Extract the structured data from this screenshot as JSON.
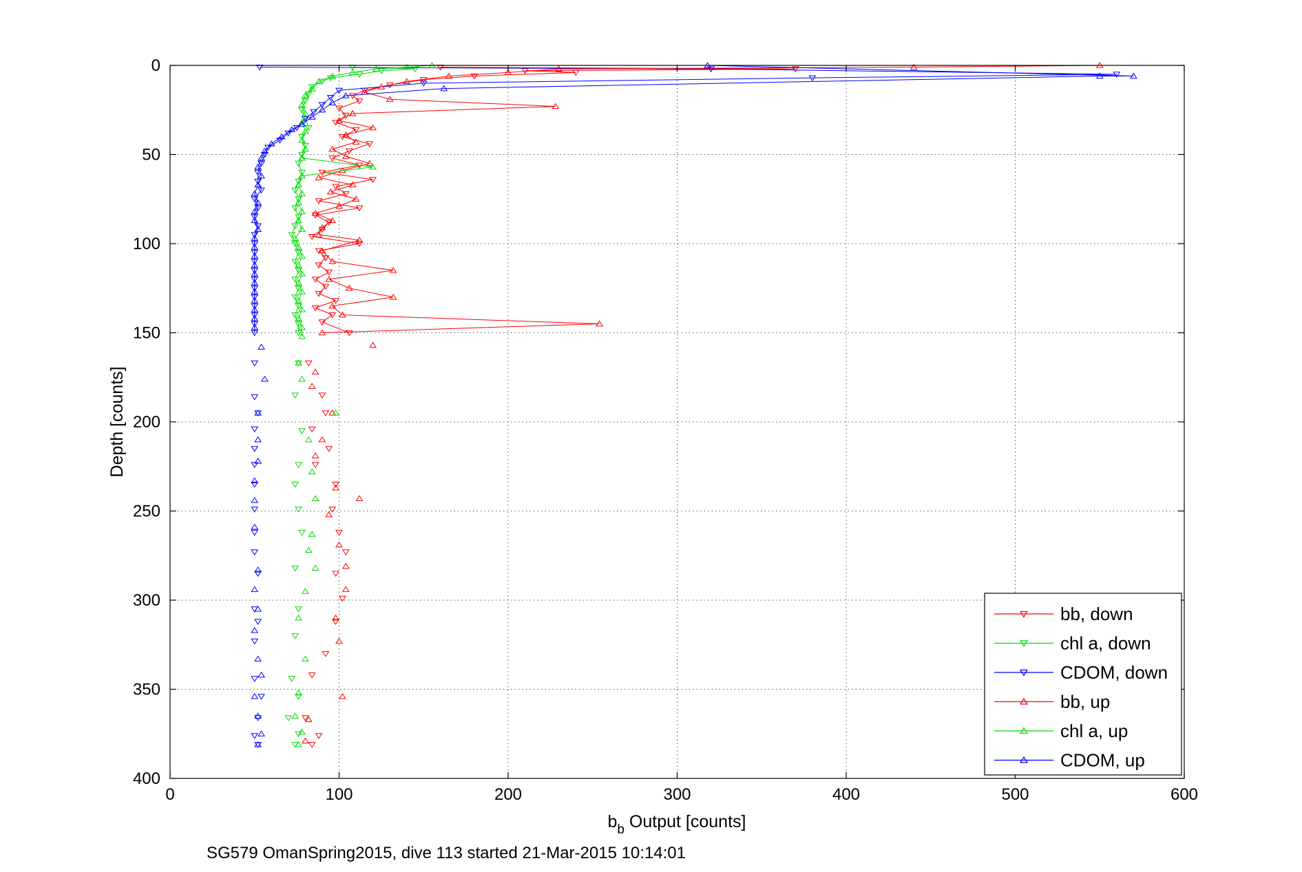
{
  "chart_data": {
    "type": "scatter",
    "title": "",
    "xlabel_main": "b",
    "xlabel_sub": "b",
    "xlabel_rest": " Output [counts]",
    "ylabel": "Depth [counts]",
    "caption": "SG579 OmanSpring2015, dive 113 started 21-Mar-2015 10:14:01",
    "xlim": [
      0,
      600
    ],
    "ylim": [
      0,
      400
    ],
    "y_reversed": true,
    "grid": true,
    "legend_position": "bottom-right",
    "x_ticks": [
      0,
      100,
      200,
      300,
      400,
      500,
      600
    ],
    "y_ticks": [
      0,
      50,
      100,
      150,
      200,
      250,
      300,
      350,
      400
    ],
    "x_tick_labels": [
      "0",
      "100",
      "200",
      "300",
      "400",
      "500",
      "600"
    ],
    "y_tick_labels": [
      "0",
      "50",
      "100",
      "150",
      "200",
      "250",
      "300",
      "350",
      "400"
    ],
    "series": [
      {
        "name": "bb, down",
        "color": "#ff0000",
        "marker": "triangle-down",
        "points": [
          [
            160,
            1
          ],
          [
            370,
            2
          ],
          [
            210,
            3
          ],
          [
            240,
            4
          ],
          [
            180,
            6
          ],
          [
            150,
            8
          ],
          [
            130,
            11
          ],
          [
            115,
            14
          ],
          [
            108,
            17
          ],
          [
            112,
            20
          ],
          [
            100,
            24
          ],
          [
            104,
            28
          ],
          [
            98,
            32
          ],
          [
            110,
            36
          ],
          [
            102,
            40
          ],
          [
            118,
            44
          ],
          [
            106,
            48
          ],
          [
            96,
            52
          ],
          [
            112,
            56
          ],
          [
            90,
            60
          ],
          [
            120,
            64
          ],
          [
            98,
            68
          ],
          [
            104,
            72
          ],
          [
            88,
            76
          ],
          [
            112,
            80
          ],
          [
            86,
            84
          ],
          [
            94,
            88
          ],
          [
            90,
            92
          ],
          [
            84,
            96
          ],
          [
            112,
            100
          ],
          [
            88,
            104
          ],
          [
            92,
            108
          ],
          [
            88,
            112
          ],
          [
            94,
            116
          ],
          [
            86,
            120
          ],
          [
            92,
            124
          ],
          [
            88,
            128
          ],
          [
            98,
            132
          ],
          [
            86,
            136
          ],
          [
            96,
            140
          ],
          [
            90,
            144
          ],
          [
            106,
            150
          ],
          [
            82,
            167
          ],
          [
            90,
            185
          ],
          [
            92,
            195
          ],
          [
            84,
            204
          ],
          [
            94,
            215
          ],
          [
            86,
            224
          ],
          [
            98,
            235
          ],
          [
            96,
            249
          ],
          [
            100,
            262
          ],
          [
            104,
            273
          ],
          [
            98,
            285
          ],
          [
            102,
            299
          ],
          [
            98,
            312
          ],
          [
            92,
            330
          ],
          [
            84,
            342
          ],
          [
            80,
            366
          ],
          [
            88,
            376
          ],
          [
            84,
            381
          ]
        ]
      },
      {
        "name": "chl a, down",
        "color": "#00dd00",
        "marker": "triangle-down",
        "points": [
          [
            108,
            1
          ],
          [
            145,
            2
          ],
          [
            125,
            3
          ],
          [
            112,
            5
          ],
          [
            95,
            7
          ],
          [
            90,
            9
          ],
          [
            84,
            12
          ],
          [
            82,
            16
          ],
          [
            80,
            20
          ],
          [
            78,
            25
          ],
          [
            80,
            30
          ],
          [
            82,
            35
          ],
          [
            78,
            40
          ],
          [
            80,
            45
          ],
          [
            78,
            50
          ],
          [
            76,
            55
          ],
          [
            78,
            60
          ],
          [
            76,
            65
          ],
          [
            74,
            70
          ],
          [
            76,
            75
          ],
          [
            74,
            80
          ],
          [
            76,
            85
          ],
          [
            74,
            90
          ],
          [
            72,
            95
          ],
          [
            74,
            100
          ],
          [
            76,
            105
          ],
          [
            74,
            110
          ],
          [
            76,
            115
          ],
          [
            74,
            120
          ],
          [
            76,
            125
          ],
          [
            74,
            130
          ],
          [
            76,
            135
          ],
          [
            74,
            140
          ],
          [
            76,
            145
          ],
          [
            76,
            150
          ],
          [
            76,
            167
          ],
          [
            74,
            185
          ],
          [
            78,
            205
          ],
          [
            76,
            224
          ],
          [
            74,
            235
          ],
          [
            76,
            249
          ],
          [
            78,
            262
          ],
          [
            74,
            282
          ],
          [
            76,
            305
          ],
          [
            74,
            320
          ],
          [
            72,
            344
          ],
          [
            76,
            354
          ],
          [
            70,
            366
          ],
          [
            76,
            375
          ],
          [
            74,
            381
          ]
        ]
      },
      {
        "name": "CDOM, down",
        "color": "#0000ff",
        "marker": "triangle-down",
        "points": [
          [
            53,
            1
          ],
          [
            320,
            2
          ],
          [
            560,
            5
          ],
          [
            380,
            7
          ],
          [
            150,
            10
          ],
          [
            100,
            14
          ],
          [
            95,
            18
          ],
          [
            90,
            22
          ],
          [
            85,
            26
          ],
          [
            80,
            30
          ],
          [
            75,
            35
          ],
          [
            70,
            38
          ],
          [
            65,
            42
          ],
          [
            58,
            46
          ],
          [
            56,
            50
          ],
          [
            54,
            55
          ],
          [
            52,
            60
          ],
          [
            52,
            65
          ],
          [
            54,
            70
          ],
          [
            50,
            75
          ],
          [
            52,
            80
          ],
          [
            50,
            85
          ],
          [
            52,
            90
          ],
          [
            50,
            95
          ],
          [
            50,
            100
          ],
          [
            50,
            105
          ],
          [
            50,
            110
          ],
          [
            50,
            115
          ],
          [
            50,
            120
          ],
          [
            50,
            125
          ],
          [
            50,
            130
          ],
          [
            50,
            135
          ],
          [
            50,
            140
          ],
          [
            50,
            145
          ],
          [
            50,
            150
          ],
          [
            50,
            167
          ],
          [
            50,
            186
          ],
          [
            52,
            195
          ],
          [
            50,
            204
          ],
          [
            50,
            215
          ],
          [
            50,
            224
          ],
          [
            50,
            235
          ],
          [
            50,
            249
          ],
          [
            50,
            262
          ],
          [
            50,
            273
          ],
          [
            52,
            285
          ],
          [
            50,
            305
          ],
          [
            52,
            312
          ],
          [
            50,
            323
          ],
          [
            50,
            344
          ],
          [
            54,
            354
          ],
          [
            52,
            366
          ],
          [
            50,
            376
          ],
          [
            52,
            381
          ]
        ]
      },
      {
        "name": "bb, up",
        "color": "#ff0000",
        "marker": "triangle-up",
        "points": [
          [
            550,
            0
          ],
          [
            440,
            1
          ],
          [
            230,
            2
          ],
          [
            200,
            4
          ],
          [
            165,
            6
          ],
          [
            140,
            9
          ],
          [
            125,
            12
          ],
          [
            115,
            15
          ],
          [
            130,
            19
          ],
          [
            228,
            23
          ],
          [
            108,
            27
          ],
          [
            100,
            31
          ],
          [
            120,
            35
          ],
          [
            104,
            39
          ],
          [
            110,
            43
          ],
          [
            96,
            47
          ],
          [
            104,
            51
          ],
          [
            118,
            55
          ],
          [
            102,
            59
          ],
          [
            88,
            63
          ],
          [
            108,
            67
          ],
          [
            95,
            71
          ],
          [
            110,
            75
          ],
          [
            100,
            79
          ],
          [
            86,
            83
          ],
          [
            96,
            87
          ],
          [
            90,
            91
          ],
          [
            88,
            95
          ],
          [
            112,
            98
          ],
          [
            90,
            104
          ],
          [
            96,
            110
          ],
          [
            132,
            115
          ],
          [
            94,
            120
          ],
          [
            106,
            125
          ],
          [
            132,
            130
          ],
          [
            96,
            135
          ],
          [
            102,
            140
          ],
          [
            254,
            145
          ],
          [
            90,
            150
          ],
          [
            120,
            157
          ],
          [
            86,
            172
          ],
          [
            84,
            180
          ],
          [
            96,
            195
          ],
          [
            90,
            210
          ],
          [
            86,
            219
          ],
          [
            98,
            237
          ],
          [
            112,
            243
          ],
          [
            94,
            252
          ],
          [
            100,
            269
          ],
          [
            104,
            281
          ],
          [
            104,
            294
          ],
          [
            98,
            310
          ],
          [
            100,
            323
          ],
          [
            102,
            354
          ],
          [
            82,
            367
          ],
          [
            80,
            379
          ]
        ]
      },
      {
        "name": "chl a, up",
        "color": "#00dd00",
        "marker": "triangle-up",
        "points": [
          [
            155,
            0
          ],
          [
            140,
            1
          ],
          [
            122,
            2
          ],
          [
            108,
            4
          ],
          [
            96,
            6
          ],
          [
            88,
            9
          ],
          [
            84,
            13
          ],
          [
            80,
            17
          ],
          [
            78,
            22
          ],
          [
            80,
            27
          ],
          [
            78,
            32
          ],
          [
            80,
            37
          ],
          [
            78,
            42
          ],
          [
            80,
            47
          ],
          [
            78,
            52
          ],
          [
            120,
            57
          ],
          [
            78,
            62
          ],
          [
            76,
            67
          ],
          [
            78,
            72
          ],
          [
            76,
            77
          ],
          [
            78,
            82
          ],
          [
            76,
            87
          ],
          [
            78,
            92
          ],
          [
            74,
            97
          ],
          [
            76,
            102
          ],
          [
            78,
            107
          ],
          [
            76,
            112
          ],
          [
            78,
            117
          ],
          [
            76,
            122
          ],
          [
            78,
            127
          ],
          [
            76,
            132
          ],
          [
            78,
            137
          ],
          [
            76,
            142
          ],
          [
            78,
            147
          ],
          [
            78,
            152
          ],
          [
            76,
            167
          ],
          [
            78,
            176
          ],
          [
            98,
            195
          ],
          [
            82,
            210
          ],
          [
            84,
            228
          ],
          [
            86,
            243
          ],
          [
            84,
            263
          ],
          [
            82,
            272
          ],
          [
            86,
            282
          ],
          [
            80,
            295
          ],
          [
            76,
            310
          ],
          [
            80,
            333
          ],
          [
            76,
            352
          ],
          [
            74,
            365
          ],
          [
            78,
            374
          ],
          [
            76,
            381
          ]
        ]
      },
      {
        "name": "CDOM, up",
        "color": "#0000ff",
        "marker": "triangle-up",
        "points": [
          [
            318,
            0
          ],
          [
            570,
            6
          ],
          [
            550,
            6
          ],
          [
            162,
            13
          ],
          [
            104,
            17
          ],
          [
            96,
            21
          ],
          [
            90,
            25
          ],
          [
            84,
            29
          ],
          [
            78,
            33
          ],
          [
            72,
            36
          ],
          [
            66,
            40
          ],
          [
            60,
            44
          ],
          [
            56,
            48
          ],
          [
            54,
            52
          ],
          [
            52,
            57
          ],
          [
            54,
            62
          ],
          [
            52,
            67
          ],
          [
            50,
            72
          ],
          [
            52,
            77
          ],
          [
            50,
            82
          ],
          [
            50,
            87
          ],
          [
            52,
            92
          ],
          [
            50,
            97
          ],
          [
            50,
            102
          ],
          [
            50,
            107
          ],
          [
            50,
            112
          ],
          [
            50,
            117
          ],
          [
            50,
            122
          ],
          [
            50,
            127
          ],
          [
            50,
            132
          ],
          [
            50,
            137
          ],
          [
            50,
            142
          ],
          [
            50,
            147
          ],
          [
            54,
            158
          ],
          [
            56,
            176
          ],
          [
            52,
            195
          ],
          [
            52,
            210
          ],
          [
            52,
            222
          ],
          [
            50,
            233
          ],
          [
            50,
            244
          ],
          [
            50,
            259
          ],
          [
            52,
            283
          ],
          [
            50,
            294
          ],
          [
            52,
            305
          ],
          [
            50,
            317
          ],
          [
            52,
            333
          ],
          [
            54,
            342
          ],
          [
            50,
            354
          ],
          [
            52,
            365
          ],
          [
            54,
            375
          ],
          [
            52,
            381
          ]
        ]
      }
    ]
  }
}
